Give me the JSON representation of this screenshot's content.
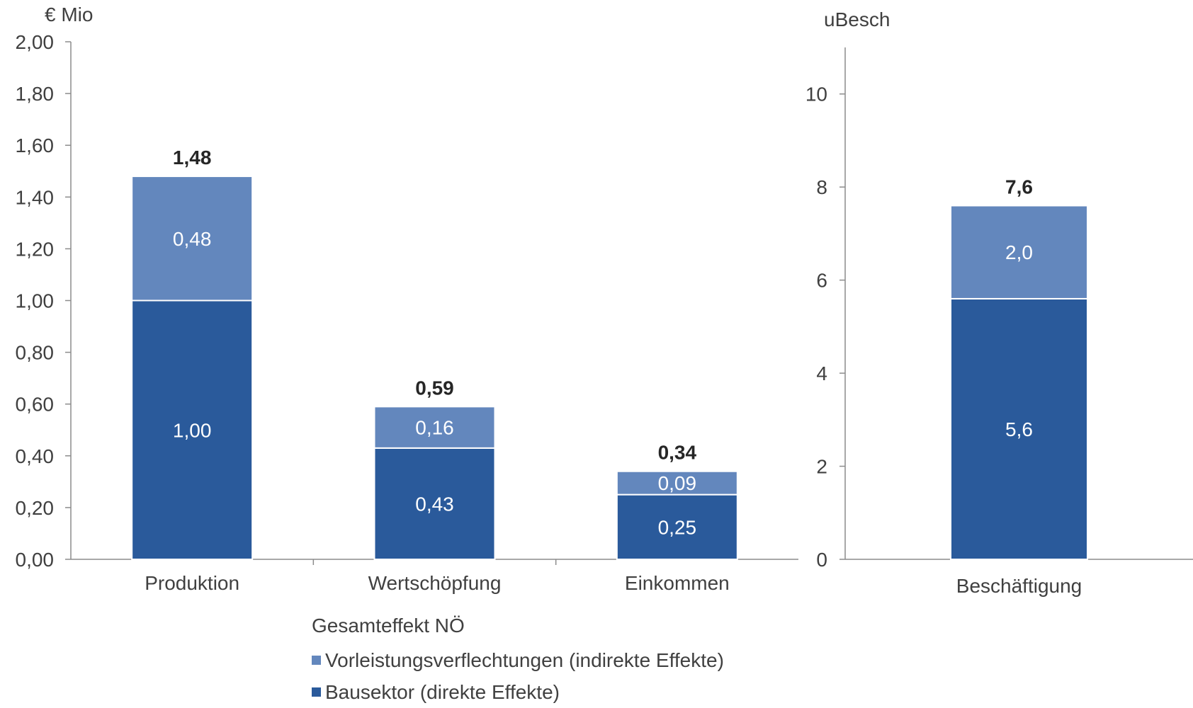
{
  "chart_data": [
    {
      "type": "bar",
      "stacked": true,
      "unit_label": "€ Mio",
      "categories": [
        "Produktion",
        "Wertschöpfung",
        "Einkommen"
      ],
      "series": [
        {
          "name": "Bausektor (direkte Effekte)",
          "values": [
            1.0,
            0.43,
            0.25
          ],
          "labels": [
            "1,00",
            "0,43",
            "0,25"
          ],
          "color": "#2a5a9b"
        },
        {
          "name": "Vorleistungsverflechtungen (indirekte Effekte)",
          "values": [
            0.48,
            0.16,
            0.09
          ],
          "labels": [
            "0,48",
            "0,16",
            "0,09"
          ],
          "color": "#6387bd"
        }
      ],
      "totals": [
        1.48,
        0.59,
        0.34
      ],
      "total_labels": [
        "1,48",
        "0,59",
        "0,34"
      ],
      "ylim": [
        0,
        2
      ],
      "yticks": [
        0,
        0.2,
        0.4,
        0.6,
        0.8,
        1.0,
        1.2,
        1.4,
        1.6,
        1.8,
        2.0
      ],
      "ytick_labels": [
        "0,00",
        "0,20",
        "0,40",
        "0,60",
        "0,80",
        "1,00",
        "1,20",
        "1,40",
        "1,60",
        "1,80",
        "2,00"
      ],
      "grid": false
    },
    {
      "type": "bar",
      "stacked": true,
      "unit_label": "uBesch",
      "categories": [
        "Beschäftigung"
      ],
      "series": [
        {
          "name": "Bausektor (direkte Effekte)",
          "values": [
            5.6
          ],
          "labels": [
            "5,6"
          ],
          "color": "#2a5a9b"
        },
        {
          "name": "Vorleistungsverflechtungen (indirekte Effekte)",
          "values": [
            2.0
          ],
          "labels": [
            "2,0"
          ],
          "color": "#6387bd"
        }
      ],
      "totals": [
        7.6
      ],
      "total_labels": [
        "7,6"
      ],
      "ylim": [
        0,
        11
      ],
      "yticks": [
        0,
        2,
        4,
        6,
        8,
        10
      ],
      "ytick_labels": [
        "0",
        "2",
        "4",
        "6",
        "8",
        "10"
      ],
      "grid": false
    }
  ],
  "legend": {
    "title": "Gesamteffekt NÖ",
    "items": [
      {
        "label": "Vorleistungsverflechtungen (indirekte Effekte)",
        "color": "#6387bd"
      },
      {
        "label": "Bausektor (direkte Effekte)",
        "color": "#2a5a9b"
      }
    ]
  },
  "colors": {
    "axis": "#8c8c8c",
    "text": "#404040",
    "total_text": "#262626",
    "segment_label": "#ffffff"
  }
}
